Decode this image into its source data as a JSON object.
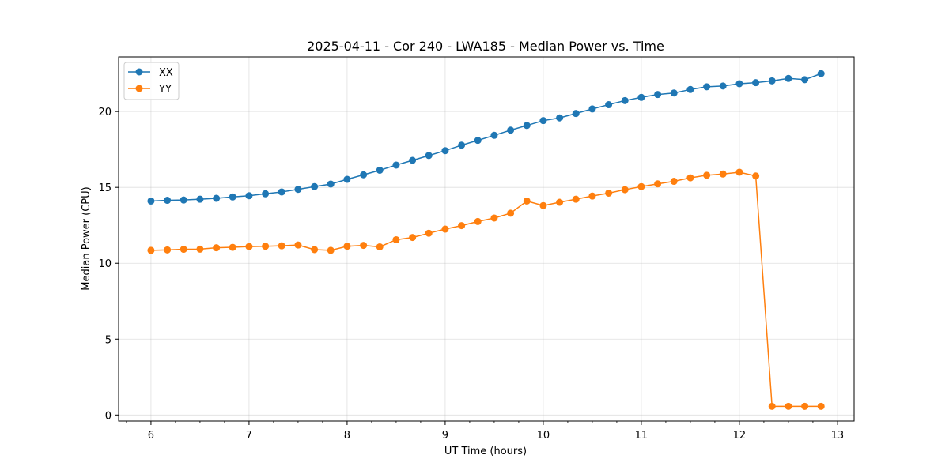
{
  "chart_data": {
    "type": "line",
    "title": "2025-04-11 - Cor 240 - LWA185 - Median Power vs. Time",
    "xlabel": "UT Time (hours)",
    "ylabel": "Median Power (CPU)",
    "xlim": [
      5.67,
      13.17
    ],
    "ylim": [
      -0.4,
      23.6
    ],
    "xticks": [
      6,
      7,
      8,
      9,
      10,
      11,
      12,
      13
    ],
    "yticks": [
      0,
      5,
      10,
      15,
      20
    ],
    "grid": true,
    "legend_position": "top-left",
    "x": [
      6.0,
      6.167,
      6.333,
      6.5,
      6.667,
      6.833,
      7.0,
      7.167,
      7.333,
      7.5,
      7.667,
      7.833,
      8.0,
      8.167,
      8.333,
      8.5,
      8.667,
      8.833,
      9.0,
      9.167,
      9.333,
      9.5,
      9.667,
      9.833,
      10.0,
      10.167,
      10.333,
      10.5,
      10.667,
      10.833,
      11.0,
      11.167,
      11.333,
      11.5,
      11.667,
      11.833,
      12.0,
      12.167,
      12.333,
      12.5,
      12.667,
      12.833
    ],
    "series": [
      {
        "name": "XX",
        "color": "#1f77b4",
        "values": [
          14.1,
          14.15,
          14.17,
          14.22,
          14.28,
          14.37,
          14.45,
          14.58,
          14.7,
          14.87,
          15.05,
          15.22,
          15.53,
          15.83,
          16.13,
          16.47,
          16.78,
          17.1,
          17.42,
          17.78,
          18.1,
          18.43,
          18.77,
          19.08,
          19.4,
          19.58,
          19.87,
          20.17,
          20.45,
          20.72,
          20.93,
          21.12,
          21.22,
          21.45,
          21.63,
          21.68,
          21.83,
          21.9,
          22.02,
          22.18,
          22.1,
          22.5
        ]
      },
      {
        "name": "YY",
        "color": "#ff7f0e",
        "values": [
          10.85,
          10.88,
          10.92,
          10.93,
          11.02,
          11.05,
          11.1,
          11.12,
          11.15,
          11.2,
          10.9,
          10.85,
          11.12,
          11.18,
          11.08,
          11.55,
          11.7,
          11.98,
          12.25,
          12.48,
          12.75,
          12.98,
          13.3,
          14.1,
          13.8,
          14.02,
          14.22,
          14.43,
          14.62,
          14.85,
          15.05,
          15.23,
          15.4,
          15.63,
          15.8,
          15.88,
          16.0,
          15.75,
          0.57,
          0.57,
          0.57,
          0.57
        ]
      }
    ]
  }
}
